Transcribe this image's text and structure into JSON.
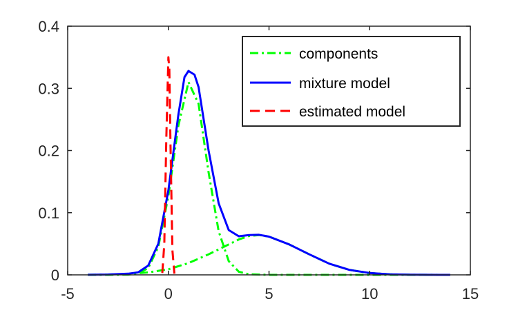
{
  "chart_data": {
    "type": "line",
    "title": "",
    "xlabel": "",
    "ylabel": "",
    "xlim": [
      -5,
      15
    ],
    "ylim": [
      0,
      0.4
    ],
    "xticks": [
      -5,
      0,
      5,
      10,
      15
    ],
    "yticks": [
      0,
      0.1,
      0.2,
      0.3,
      0.4
    ],
    "xtick_labels": [
      "-5",
      "0",
      "5",
      "10",
      "15"
    ],
    "ytick_labels": [
      "0",
      "0.1",
      "0.2",
      "0.3",
      "0.4"
    ],
    "grid": false,
    "legend_position": "top-right",
    "legend": [
      {
        "label": "components",
        "series": "components",
        "color": "#00ff00",
        "style": "dash-dot"
      },
      {
        "label": "mixture model",
        "series": "mixture",
        "color": "#0000ff",
        "style": "solid"
      },
      {
        "label": "estimated model",
        "series": "estimated",
        "color": "#ff0000",
        "style": "dashed"
      }
    ],
    "series": [
      {
        "id": "component1",
        "group": "components",
        "color": "#00ff00",
        "style": "dash-dot",
        "x": [
          -4,
          -3,
          -2,
          -1.5,
          -1,
          -0.5,
          0,
          0.5,
          1,
          1.5,
          2,
          2.5,
          3,
          3.5,
          4,
          5,
          6,
          8,
          14
        ],
        "y": [
          0,
          0,
          0.0003,
          0.002,
          0.011,
          0.045,
          0.127,
          0.24,
          0.31,
          0.275,
          0.165,
          0.07,
          0.022,
          0.005,
          0.001,
          0,
          0,
          0,
          0
        ]
      },
      {
        "id": "component2",
        "group": "components",
        "color": "#00ff00",
        "style": "dash-dot",
        "x": [
          -4,
          -3,
          -2,
          -1,
          0,
          1,
          2,
          3,
          3.5,
          4,
          4.5,
          5,
          6,
          7,
          8,
          9,
          10,
          11,
          12,
          14
        ],
        "y": [
          0.0001,
          0.0005,
          0.0016,
          0.004,
          0.009,
          0.019,
          0.033,
          0.049,
          0.057,
          0.0625,
          0.064,
          0.0615,
          0.049,
          0.033,
          0.018,
          0.008,
          0.003,
          0.0009,
          0.0002,
          0
        ]
      },
      {
        "id": "mixture",
        "group": "mixture",
        "color": "#0000ff",
        "style": "solid",
        "x": [
          -4,
          -3,
          -2,
          -1.5,
          -1,
          -0.5,
          0,
          0.5,
          0.8,
          1,
          1.3,
          1.5,
          2,
          2.5,
          3,
          3.5,
          4,
          4.5,
          5,
          6,
          7,
          8,
          9,
          10,
          11,
          12,
          14
        ],
        "y": [
          0.0001,
          0.0005,
          0.0019,
          0.004,
          0.015,
          0.05,
          0.136,
          0.258,
          0.318,
          0.328,
          0.322,
          0.302,
          0.2,
          0.115,
          0.072,
          0.062,
          0.064,
          0.0645,
          0.0615,
          0.049,
          0.033,
          0.018,
          0.008,
          0.003,
          0.0009,
          0.0002,
          0
        ]
      },
      {
        "id": "estimated",
        "group": "estimated",
        "color": "#ff0000",
        "style": "dashed",
        "x": [
          -0.3,
          -0.2,
          -0.1,
          0,
          0.05,
          0.1,
          0.2,
          0.3
        ],
        "y": [
          0.003,
          0.05,
          0.22,
          0.35,
          0.33,
          0.22,
          0.04,
          0.002
        ]
      }
    ]
  }
}
